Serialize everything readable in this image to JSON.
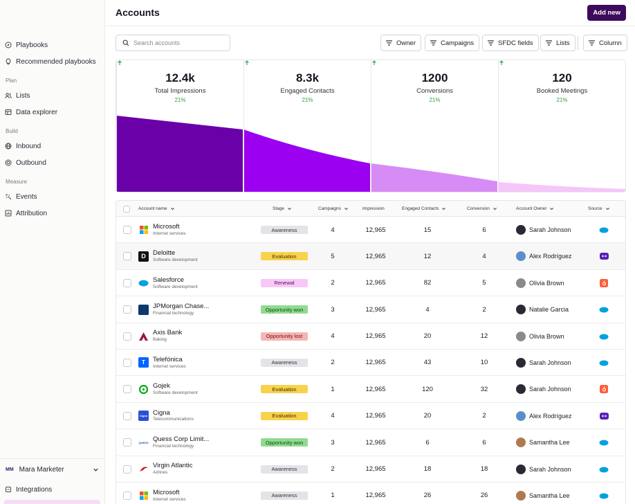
{
  "sidebar": {
    "items": [
      {
        "label": "Playbooks",
        "icon": "compass-icon"
      },
      {
        "label": "Recommended playbooks",
        "icon": "lightbulb-icon"
      },
      {
        "label": "Lists",
        "icon": "users-icon"
      },
      {
        "label": "Data explorer",
        "icon": "database-icon"
      },
      {
        "label": "Inbound",
        "icon": "globe-icon"
      },
      {
        "label": "Outbound",
        "icon": "target-icon"
      },
      {
        "label": "Events",
        "icon": "sparkle-icon"
      },
      {
        "label": "Attribution",
        "icon": "chart-icon"
      },
      {
        "label": "Integrations",
        "icon": "plug-icon"
      }
    ],
    "sections": {
      "plan": "Plan",
      "build": "Build",
      "measure": "Measure"
    },
    "user": {
      "initials": "MM",
      "name": "Mara Marketer"
    }
  },
  "header": {
    "title": "Accounts",
    "add_new": "Add new"
  },
  "search": {
    "placeholder": "Search accounts"
  },
  "filters": [
    "Owner",
    "Campaigns",
    "SFDC fields",
    "Lists",
    "Column"
  ],
  "metrics": [
    {
      "value": "12.4k",
      "label": "Total Impressions",
      "change": "21%"
    },
    {
      "value": "8.3k",
      "label": "Engaged Contacts",
      "change": "21%"
    },
    {
      "value": "1200",
      "label": "Conversions",
      "change": "21%"
    },
    {
      "value": "120",
      "label": "Booked Meetings",
      "change": "21%"
    }
  ],
  "table": {
    "headers": {
      "account": "Account name",
      "stage": "Stage",
      "campaigns": "Campaigns",
      "impression": "Impression",
      "engaged": "Engaged Contacts",
      "conversion": "Conversion",
      "owner": "Account Owner",
      "source": "Source"
    },
    "rows": [
      {
        "name": "Microsoft",
        "sub": "Internet services",
        "logo": "ms",
        "stage": "Awareness",
        "campaigns": "4",
        "impression": "12,965",
        "engaged": "15",
        "conversion": "6",
        "owner": "Sarah Johnson",
        "avatar": "#2a2a36",
        "source": "salesforce"
      },
      {
        "name": "Deloitte",
        "sub": "Software development",
        "logo": "deloitte",
        "stage": "Evaluation",
        "campaigns": "5",
        "impression": "12,965",
        "engaged": "12",
        "conversion": "4",
        "owner": "Alex Rodríguez",
        "avatar": "#5b8fc9",
        "source": "discord"
      },
      {
        "name": "Salesforce",
        "sub": "Software development",
        "logo": "sf",
        "stage": "Renewal",
        "campaigns": "2",
        "impression": "12,965",
        "engaged": "82",
        "conversion": "5",
        "owner": "Olivia Brown",
        "avatar": "#8a8a8a",
        "source": "hubspot"
      },
      {
        "name": "JPMorgan Chase...",
        "sub": "Financial technology",
        "logo": "jpm",
        "stage": "Opportunity won",
        "campaigns": "3",
        "impression": "12,965",
        "engaged": "4",
        "conversion": "2",
        "owner": "Natalie Garcia",
        "avatar": "#2a2a36",
        "source": "salesforce"
      },
      {
        "name": "Axis Bank",
        "sub": "Baking",
        "logo": "axis",
        "stage": "Opportunity lost",
        "campaigns": "4",
        "impression": "12,965",
        "engaged": "20",
        "conversion": "12",
        "owner": "Olivia Brown",
        "avatar": "#8a8a8a",
        "source": "salesforce"
      },
      {
        "name": "Telefónica",
        "sub": "Internet services",
        "logo": "tel",
        "stage": "Awareness",
        "campaigns": "2",
        "impression": "12,965",
        "engaged": "43",
        "conversion": "10",
        "owner": "Sarah Johnson",
        "avatar": "#2a2a36",
        "source": "salesforce"
      },
      {
        "name": "Gojek",
        "sub": "Software development",
        "logo": "gojek",
        "stage": "Evaluation",
        "campaigns": "1",
        "impression": "12,965",
        "engaged": "120",
        "conversion": "32",
        "owner": "Sarah Johnson",
        "avatar": "#2a2a36",
        "source": "hubspot"
      },
      {
        "name": "Cigna",
        "sub": "Telecommunications",
        "logo": "cigna",
        "stage": "Evaluation",
        "campaigns": "4",
        "impression": "12,965",
        "engaged": "20",
        "conversion": "2",
        "owner": "Alex Rodríguez",
        "avatar": "#5b8fc9",
        "source": "discord"
      },
      {
        "name": "Quess Corp Limit...",
        "sub": "Financial technology",
        "logo": "quess",
        "stage": "Opportunity won",
        "campaigns": "3",
        "impression": "12,965",
        "engaged": "6",
        "conversion": "6",
        "owner": "Samantha Lee",
        "avatar": "#b07a50",
        "source": "salesforce"
      },
      {
        "name": "Virgin Atlantic",
        "sub": "Airlines",
        "logo": "virgin",
        "stage": "Awareness",
        "campaigns": "2",
        "impression": "12,965",
        "engaged": "18",
        "conversion": "18",
        "owner": "Sarah Johnson",
        "avatar": "#2a2a36",
        "source": "salesforce"
      },
      {
        "name": "Microsoft",
        "sub": "Internet services",
        "logo": "ms",
        "stage": "Awareness",
        "campaigns": "1",
        "impression": "12,965",
        "engaged": "26",
        "conversion": "26",
        "owner": "Samantha Lee",
        "avatar": "#b07a50",
        "source": "salesforce"
      }
    ]
  },
  "colors": {
    "brand": "#3d0b5c",
    "funnel": [
      "#6a00a8",
      "#9b00f0",
      "#d78cf5",
      "#f5c6fa"
    ],
    "stage": {
      "Awareness": [
        "#e3e3e8",
        "#333"
      ],
      "Evaluation": [
        "#f9d24d",
        "#3a2e00"
      ],
      "Renewal": [
        "#f7c8f7",
        "#5a0a5a"
      ],
      "Opportunity won": [
        "#8fdb8f",
        "#0f4a0f"
      ],
      "Opportunity lost": [
        "#f6b4b4",
        "#6a1010"
      ]
    }
  }
}
